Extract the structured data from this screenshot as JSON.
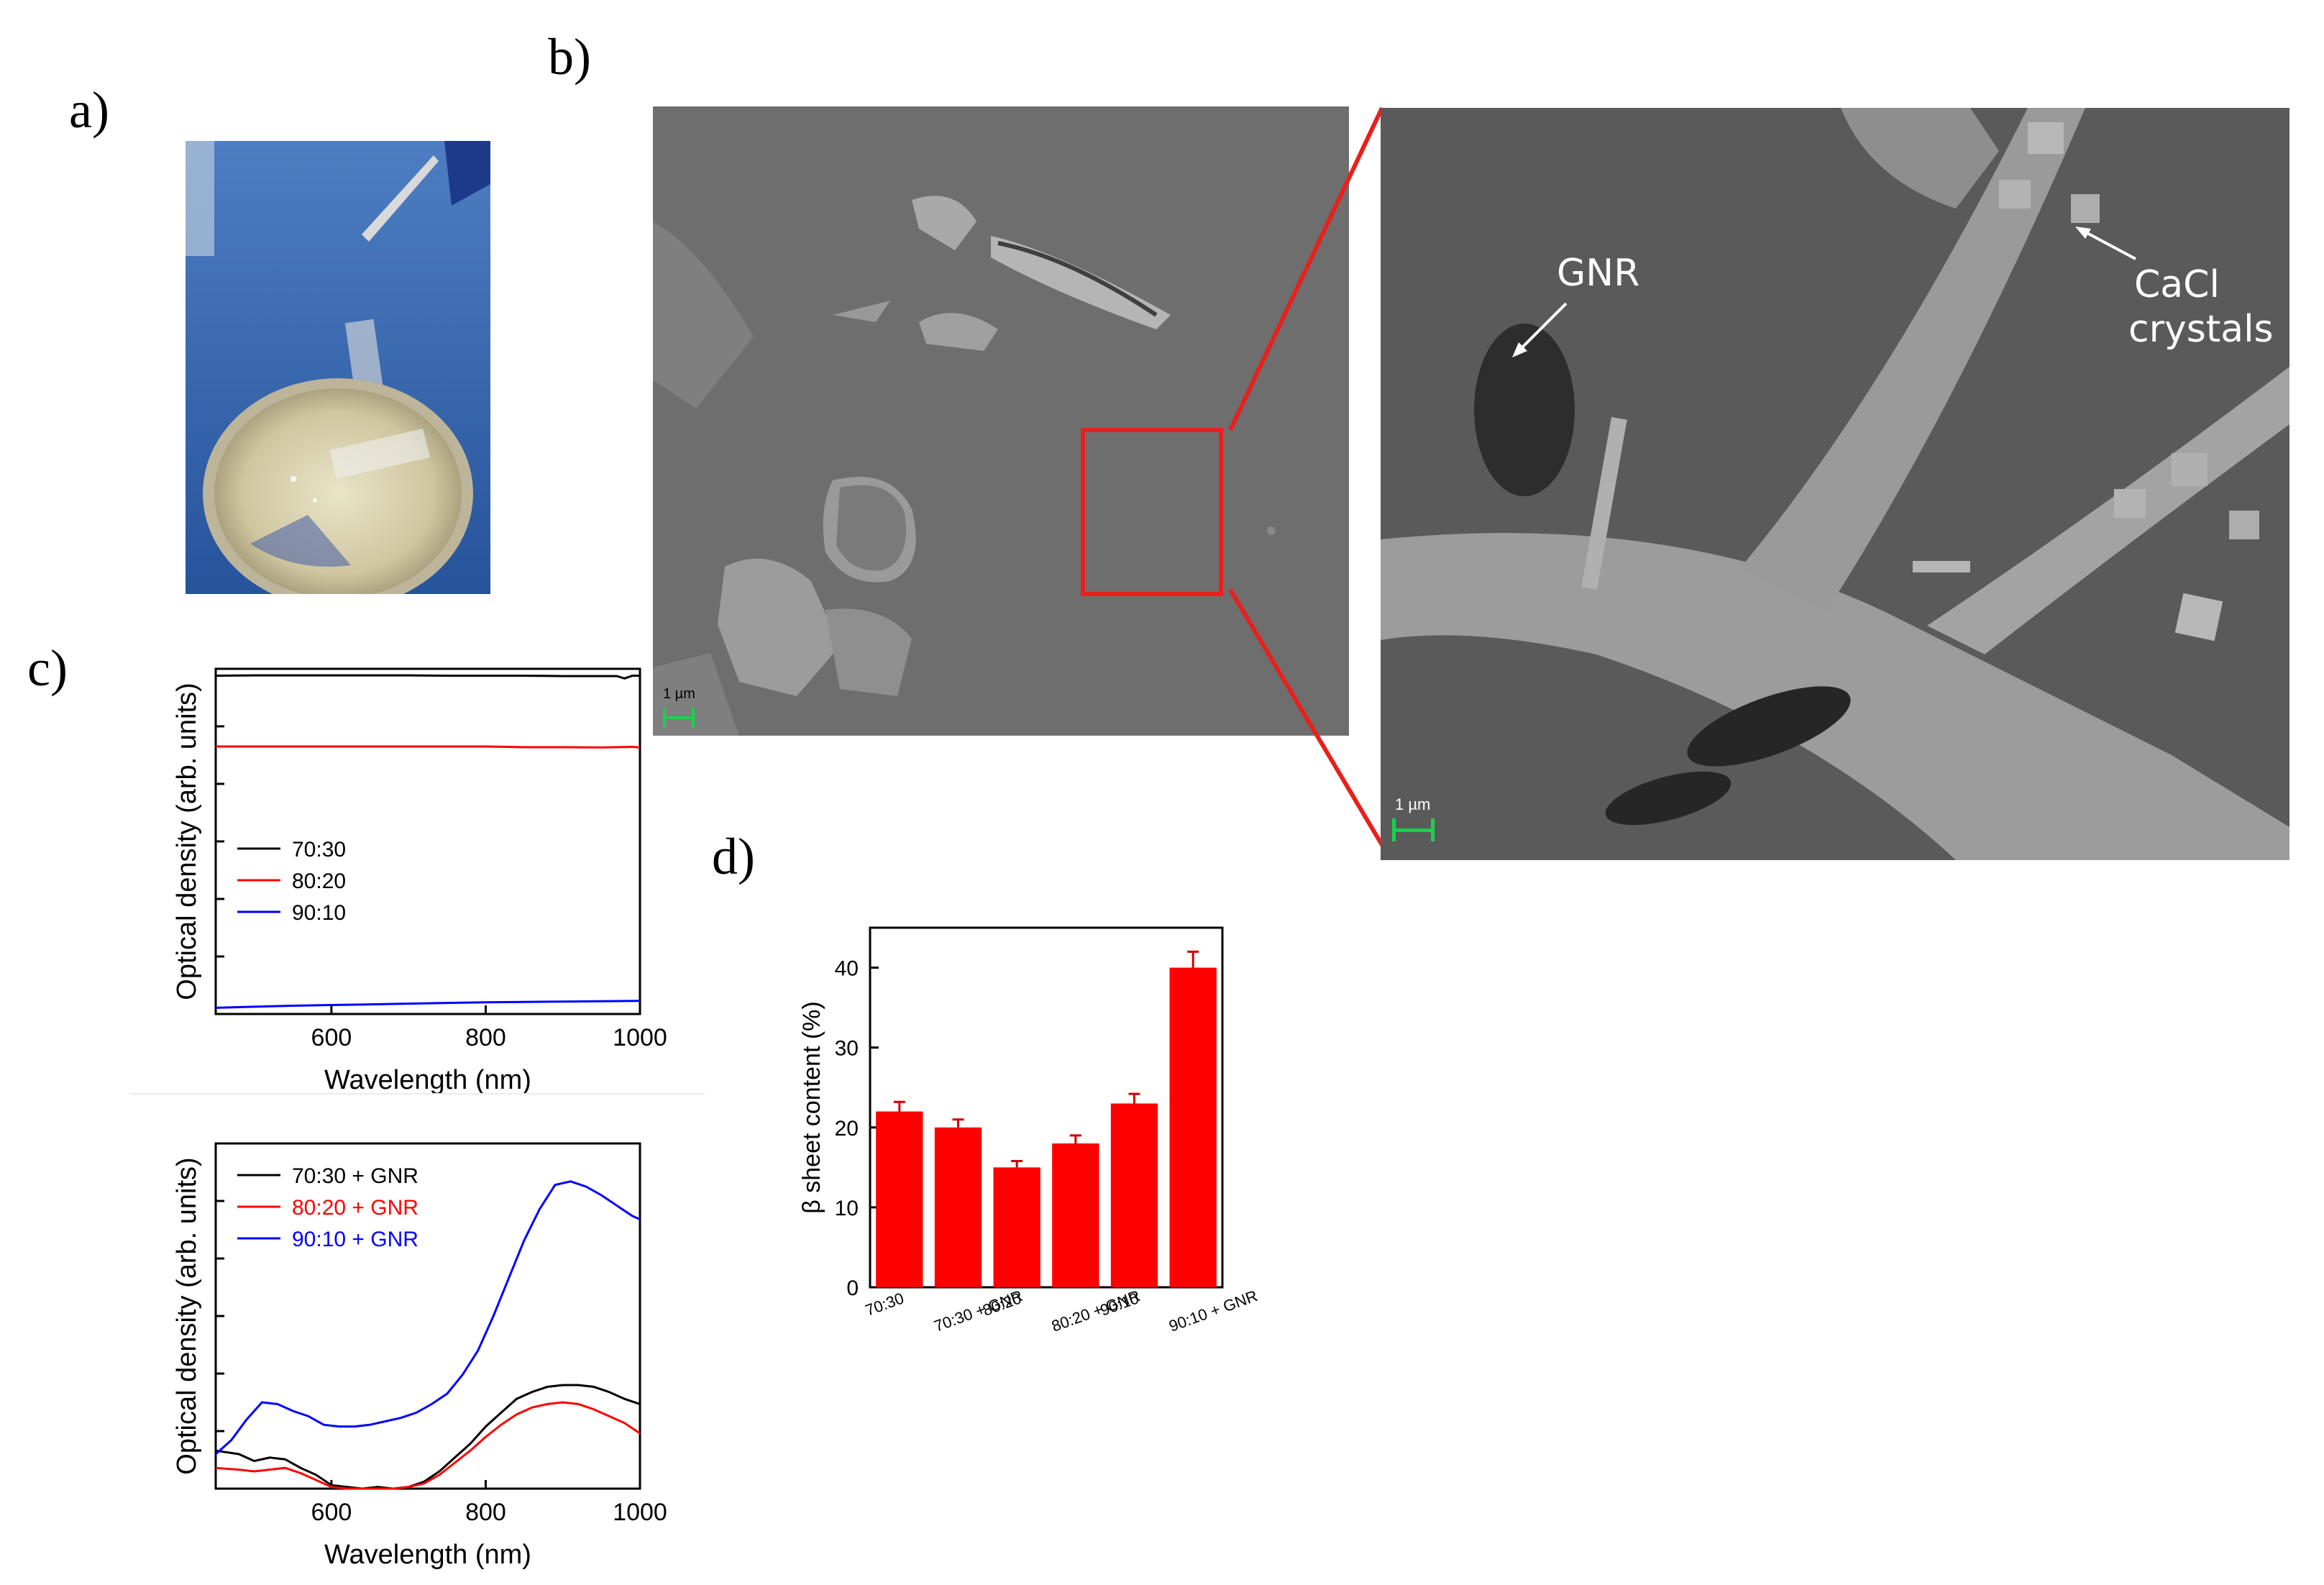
{
  "panels": {
    "a": "a)",
    "b": "b)",
    "c": "c)",
    "d": "d)"
  },
  "sem": {
    "scale_label": "1 µm",
    "scale_label_zoom": "1 µm",
    "gnr_label": "GNR",
    "cacl_line1": "CaCl",
    "cacl_line2": "crystals",
    "callout_color": "#e8201c",
    "scalebar_color": "#17d24a"
  },
  "chart_data": [
    {
      "type": "line",
      "xlabel": "Wavelength (nm)",
      "ylabel": "Optical density (arb. units)",
      "xlim": [
        450,
        1000
      ],
      "xticks": [
        600,
        800,
        1000
      ],
      "ylim": [
        0,
        1
      ],
      "y_tick_labels": false,
      "legend_position": "center-left",
      "series": [
        {
          "name": "70:30",
          "color": "#000000",
          "x": [
            450,
            500,
            550,
            600,
            650,
            700,
            750,
            800,
            850,
            900,
            950,
            970,
            980,
            990,
            1000
          ],
          "y": [
            0.98,
            0.981,
            0.981,
            0.981,
            0.981,
            0.981,
            0.98,
            0.98,
            0.98,
            0.979,
            0.979,
            0.979,
            0.972,
            0.98,
            0.98
          ]
        },
        {
          "name": "80:20",
          "color": "#ff0000",
          "x": [
            450,
            500,
            550,
            600,
            650,
            700,
            750,
            800,
            850,
            900,
            950,
            990,
            1000
          ],
          "y": [
            0.775,
            0.775,
            0.775,
            0.775,
            0.775,
            0.775,
            0.775,
            0.775,
            0.773,
            0.773,
            0.772,
            0.774,
            0.772
          ]
        },
        {
          "name": "90:10",
          "color": "#0000ff",
          "x": [
            450,
            500,
            550,
            600,
            650,
            700,
            750,
            800,
            850,
            900,
            950,
            1000
          ],
          "y": [
            0.018,
            0.021,
            0.024,
            0.026,
            0.028,
            0.03,
            0.032,
            0.034,
            0.035,
            0.036,
            0.037,
            0.038
          ]
        }
      ]
    },
    {
      "type": "line",
      "xlabel": "Wavelength (nm)",
      "ylabel": "Optical density (arb. units)",
      "xlim": [
        450,
        1000
      ],
      "xticks": [
        600,
        800,
        1000
      ],
      "ylim": [
        0,
        1
      ],
      "y_tick_labels": false,
      "legend_position": "top-left",
      "series": [
        {
          "name": "70:30 + GNR",
          "color": "#000000",
          "x": [
            450,
            480,
            500,
            520,
            540,
            560,
            580,
            600,
            620,
            640,
            660,
            680,
            700,
            720,
            740,
            760,
            780,
            800,
            820,
            840,
            860,
            880,
            900,
            920,
            940,
            960,
            980,
            1000
          ],
          "y": [
            0.11,
            0.1,
            0.08,
            0.09,
            0.085,
            0.06,
            0.04,
            0.01,
            0.005,
            0.0,
            0.005,
            0.0,
            0.005,
            0.02,
            0.05,
            0.09,
            0.13,
            0.18,
            0.22,
            0.26,
            0.28,
            0.295,
            0.3,
            0.3,
            0.295,
            0.28,
            0.26,
            0.245
          ]
        },
        {
          "name": "80:20 + GNR",
          "color": "#ff0000",
          "x": [
            450,
            480,
            500,
            520,
            540,
            560,
            580,
            600,
            620,
            640,
            660,
            680,
            700,
            720,
            740,
            760,
            780,
            800,
            820,
            840,
            860,
            880,
            900,
            920,
            940,
            960,
            980,
            1000
          ],
          "y": [
            0.06,
            0.055,
            0.05,
            0.055,
            0.06,
            0.045,
            0.025,
            0.005,
            0.0,
            0.0,
            0.0,
            0.0,
            0.005,
            0.015,
            0.04,
            0.075,
            0.11,
            0.15,
            0.185,
            0.215,
            0.235,
            0.245,
            0.25,
            0.245,
            0.23,
            0.21,
            0.19,
            0.16
          ]
        },
        {
          "name": "90:10 + GNR",
          "color": "#0000ff",
          "x": [
            450,
            470,
            490,
            510,
            530,
            550,
            570,
            590,
            610,
            630,
            650,
            670,
            690,
            710,
            730,
            750,
            770,
            790,
            810,
            830,
            850,
            870,
            890,
            910,
            930,
            950,
            970,
            990,
            1000
          ],
          "y": [
            0.1,
            0.14,
            0.2,
            0.25,
            0.245,
            0.225,
            0.21,
            0.185,
            0.18,
            0.18,
            0.185,
            0.195,
            0.205,
            0.22,
            0.245,
            0.275,
            0.33,
            0.4,
            0.5,
            0.61,
            0.72,
            0.81,
            0.88,
            0.89,
            0.875,
            0.85,
            0.82,
            0.79,
            0.78
          ]
        }
      ]
    },
    {
      "type": "bar",
      "ylabel": "β sheet content (%)",
      "categories": [
        "70:30",
        "70:30 + GNR",
        "80:20",
        "80:20 + GNR",
        "90:10",
        "90:10 + GNR"
      ],
      "values": [
        22,
        20,
        15,
        18,
        23,
        40
      ],
      "errors": [
        1.2,
        1.0,
        0.8,
        1.0,
        1.2,
        2.0
      ],
      "ylim": [
        0,
        45
      ],
      "yticks": [
        0,
        10,
        20,
        30,
        40
      ],
      "color": "#ff0000"
    }
  ]
}
